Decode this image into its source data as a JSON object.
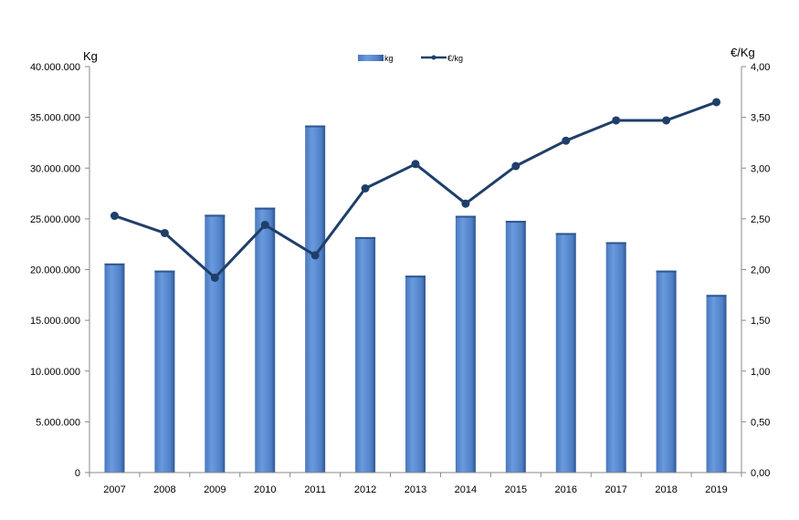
{
  "chart_data": {
    "type": "bar",
    "categories": [
      "2007",
      "2008",
      "2009",
      "2010",
      "2011",
      "2012",
      "2013",
      "2014",
      "2015",
      "2016",
      "2017",
      "2018",
      "2019"
    ],
    "series": [
      {
        "name": "kg",
        "type": "bar",
        "axis": "left",
        "values": [
          20600000,
          19900000,
          25400000,
          26100000,
          34200000,
          23200000,
          19400000,
          25300000,
          24800000,
          23600000,
          22700000,
          19900000,
          17500000
        ]
      },
      {
        "name": "€/kg",
        "type": "line",
        "axis": "right",
        "values": [
          2.53,
          2.36,
          1.92,
          2.44,
          2.14,
          2.8,
          3.04,
          2.65,
          3.02,
          3.27,
          3.47,
          3.47,
          3.65
        ]
      }
    ],
    "ylabel": "Kg",
    "y2label": "€/Kg",
    "ylim": [
      0,
      40000000
    ],
    "y2lim": [
      0,
      4
    ],
    "yticks": [
      "0",
      "5.000.000",
      "10.000.000",
      "15.000.000",
      "20.000.000",
      "25.000.000",
      "30.000.000",
      "35.000.000",
      "40.000.000"
    ],
    "y2ticks": [
      "0,00",
      "0,50",
      "1,00",
      "1,50",
      "2,00",
      "2,50",
      "3,00",
      "3,50",
      "4,00"
    ],
    "grid": false,
    "legend_position": "top-center",
    "colors": {
      "bar": "#5a8ad0",
      "bar_dark": "#2e5790",
      "line": "#1f3f6a",
      "axis": "#8a8a8a"
    }
  }
}
